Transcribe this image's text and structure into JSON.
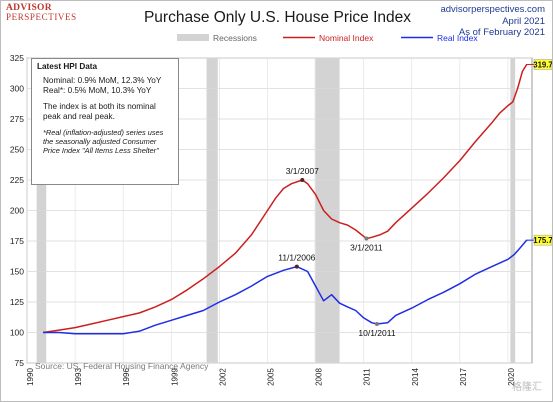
{
  "header": {
    "logo_line1": "ADVISOR",
    "logo_line2": "PERSPECTIVES",
    "title": "Purchase Only U.S. House Price Index",
    "site": "advisorperspectives.com",
    "date_line1": "April 2021",
    "date_line2": "As of February 2021"
  },
  "infobox": {
    "heading": "Latest HPI Data",
    "nominal": "Nominal: 0.9% MoM, 12.3% YoY",
    "real": "Real*: 0.5% MoM, 10.3% YoY",
    "peak_note": "The index is at both its nominal peak and real peak.",
    "footnote": "*Real (inflation-adjusted) series uses the seasonally adjusted Consumer Price Index \"All Items Less Shelter\""
  },
  "source": "Source: US. Federal Housing Finance Agency",
  "watermark": "格隆汇",
  "colors": {
    "nominal": "#cc1f1f",
    "real": "#1f2ee6",
    "recession": "#d3d3d3"
  },
  "chart_data": {
    "type": "line",
    "title": "Purchase Only U.S. House Price Index",
    "xlim": [
      1990,
      2021.5
    ],
    "ylim": [
      75,
      325
    ],
    "yticks": [
      75,
      100,
      125,
      150,
      175,
      200,
      225,
      250,
      275,
      300,
      325
    ],
    "xticks": [
      1990,
      1993,
      1996,
      1999,
      2002,
      2005,
      2008,
      2011,
      2014,
      2017,
      2020
    ],
    "grid": true,
    "legend_position": "top-center",
    "legend": [
      {
        "name": "Recessions",
        "kind": "band"
      },
      {
        "name": "Nominal Index",
        "kind": "line"
      },
      {
        "name": "Real Index",
        "kind": "line"
      }
    ],
    "recessions": [
      [
        1990.6,
        1991.2
      ],
      [
        2001.2,
        2001.9
      ],
      [
        2007.95,
        2009.5
      ],
      [
        2020.15,
        2020.45
      ]
    ],
    "series": [
      {
        "name": "Nominal Index",
        "x": [
          1991.0,
          1992.0,
          1993.0,
          1994.0,
          1995.0,
          1996.0,
          1997.0,
          1998.0,
          1999.0,
          2000.0,
          2001.0,
          2002.0,
          2003.0,
          2004.0,
          2005.0,
          2005.5,
          2006.0,
          2006.5,
          2007.17,
          2007.5,
          2008.0,
          2008.5,
          2009.0,
          2009.5,
          2010.0,
          2010.5,
          2011.17,
          2011.5,
          2012.0,
          2012.5,
          2013.0,
          2014.0,
          2015.0,
          2016.0,
          2017.0,
          2018.0,
          2019.0,
          2019.5,
          2020.0,
          2020.3,
          2020.6,
          2020.9,
          2021.17
        ],
        "values": [
          100,
          102,
          104,
          107,
          110,
          113,
          116,
          121,
          127,
          135,
          144,
          154,
          165,
          180,
          200,
          210,
          218,
          222,
          225,
          222,
          213,
          200,
          193,
          190,
          188,
          184,
          177,
          178,
          180,
          183,
          190,
          202,
          214,
          227,
          241,
          257,
          272,
          280,
          286,
          289,
          300,
          314,
          319.7
        ]
      },
      {
        "name": "Real Index",
        "x": [
          1991.0,
          1992.0,
          1993.0,
          1994.0,
          1995.0,
          1996.0,
          1997.0,
          1998.0,
          1999.0,
          2000.0,
          2001.0,
          2002.0,
          2003.0,
          2004.0,
          2005.0,
          2006.0,
          2006.83,
          2007.5,
          2008.0,
          2008.5,
          2009.0,
          2009.5,
          2010.0,
          2010.5,
          2011.0,
          2011.5,
          2011.83,
          2012.5,
          2013.0,
          2014.0,
          2015.0,
          2016.0,
          2017.0,
          2018.0,
          2019.0,
          2020.0,
          2020.4,
          2020.8,
          2021.17
        ],
        "values": [
          100,
          100,
          99,
          99,
          99,
          99,
          101,
          106,
          110,
          114,
          118,
          125,
          131,
          138,
          146,
          151,
          154,
          150,
          138,
          126,
          131,
          124,
          121,
          118,
          112,
          108,
          107,
          108,
          114,
          120,
          127,
          133,
          140,
          148,
          154,
          160,
          164,
          170,
          175.7
        ]
      }
    ],
    "annotations": [
      {
        "text": "3/1/2007",
        "x": 2007.17,
        "y": 225,
        "series": "Nominal Index"
      },
      {
        "text": "3/1/2011",
        "x": 2011.17,
        "y": 177,
        "series": "Nominal Index"
      },
      {
        "text": "11/1/2006",
        "x": 2006.83,
        "y": 154,
        "series": "Real Index"
      },
      {
        "text": "10/1/2011",
        "x": 2011.83,
        "y": 107,
        "series": "Real Index"
      }
    ],
    "end_labels": [
      {
        "series": "Nominal Index",
        "text": "319.7",
        "y": 319.7
      },
      {
        "series": "Real Index",
        "text": "175.7",
        "y": 175.7
      }
    ]
  }
}
